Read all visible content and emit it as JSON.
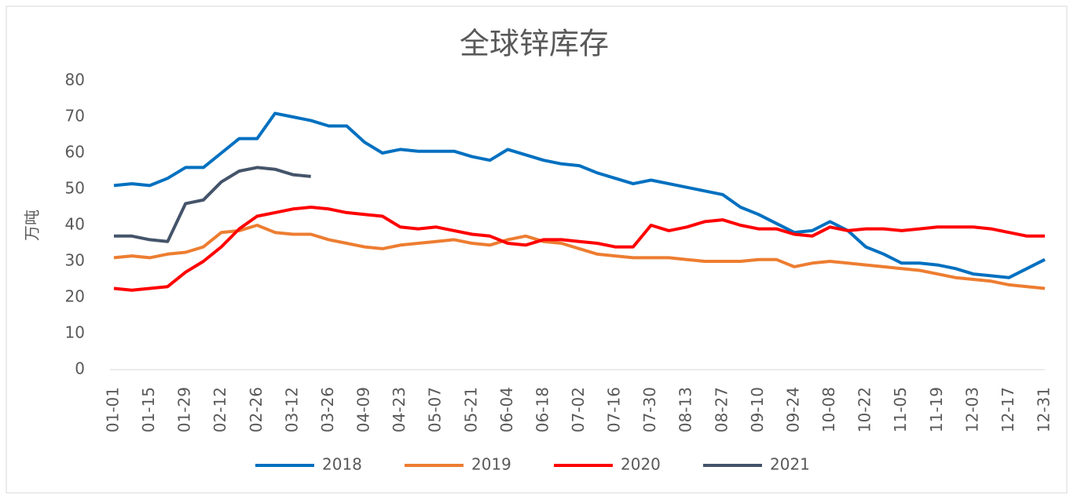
{
  "chart_data": {
    "type": "line",
    "title": "全球锌库存",
    "y_label": "万吨",
    "categories": [
      "01-01",
      null,
      "01-15",
      null,
      "01-29",
      null,
      "02-12",
      null,
      "02-26",
      null,
      "03-12",
      null,
      "03-26",
      null,
      "04-09",
      null,
      "04-23",
      null,
      "05-07",
      null,
      "05-21",
      null,
      "06-04",
      null,
      "06-18",
      null,
      "07-02",
      null,
      "07-16",
      null,
      "07-30",
      null,
      "08-13",
      null,
      "08-27",
      null,
      "09-10",
      null,
      "09-24",
      null,
      "10-08",
      null,
      "10-22",
      null,
      "11-05",
      null,
      "11-19",
      null,
      "12-03",
      null,
      "12-17",
      null,
      "12-31"
    ],
    "series": [
      {
        "name": "2018",
        "color": "#0070c0",
        "values": [
          51,
          51.5,
          51,
          53,
          56,
          56,
          60,
          64,
          64,
          71,
          70,
          69,
          67.5,
          67.5,
          63,
          60,
          61,
          60.5,
          60.5,
          60.5,
          59,
          58,
          61,
          59.5,
          58,
          57,
          56.5,
          54.5,
          53,
          51.5,
          52.5,
          51.5,
          50.5,
          49.5,
          48.5,
          45,
          43,
          40.5,
          38,
          38.5,
          41,
          38.5,
          34,
          32,
          29.5,
          29.5,
          29,
          28,
          26.5,
          26,
          25.5,
          28,
          30.5
        ]
      },
      {
        "name": "2019",
        "color": "#ed7d31",
        "values": [
          31,
          31.5,
          31,
          32,
          32.5,
          34,
          38,
          38.5,
          40,
          38,
          37.5,
          37.5,
          36,
          35,
          34,
          33.5,
          34.5,
          35,
          35.5,
          36,
          35,
          34.5,
          36,
          37,
          35.5,
          35,
          33.5,
          32,
          31.5,
          31,
          31,
          31,
          30.5,
          30,
          30,
          30,
          30.5,
          30.5,
          28.5,
          29.5,
          30,
          29.5,
          29,
          28.5,
          28,
          27.5,
          26.5,
          25.5,
          25,
          24.5,
          23.5,
          23,
          22.5
        ]
      },
      {
        "name": "2020",
        "color": "#ff0000",
        "values": [
          22.5,
          22,
          22.5,
          23,
          27,
          30,
          34,
          39,
          42.5,
          43.5,
          44.5,
          45,
          44.5,
          43.5,
          43,
          42.5,
          39.5,
          39,
          39.5,
          38.5,
          37.5,
          37,
          35,
          34.5,
          36,
          36,
          35.5,
          35,
          34,
          34,
          40,
          38.5,
          39.5,
          41,
          41.5,
          40,
          39,
          39,
          37.5,
          37,
          39.5,
          38.5,
          39,
          39,
          38.5,
          39,
          39.5,
          39.5,
          39.5,
          39,
          38,
          37,
          37
        ]
      },
      {
        "name": "2021",
        "color": "#44546a",
        "values": [
          37,
          37,
          36,
          35.5,
          46,
          47,
          52,
          55,
          56,
          55.5,
          54,
          53.5,
          null,
          null,
          null,
          null,
          null,
          null,
          null,
          null,
          null,
          null,
          null,
          null,
          null,
          null,
          null,
          null,
          null,
          null,
          null,
          null,
          null,
          null,
          null,
          null,
          null,
          null,
          null,
          null,
          null,
          null,
          null,
          null,
          null,
          null,
          null,
          null,
          null,
          null,
          null,
          null,
          null
        ]
      }
    ],
    "ylim": [
      0,
      80
    ],
    "yticks": [
      0,
      10,
      20,
      30,
      40,
      50,
      60,
      70,
      80
    ],
    "grid": false,
    "legend": "bottom"
  }
}
